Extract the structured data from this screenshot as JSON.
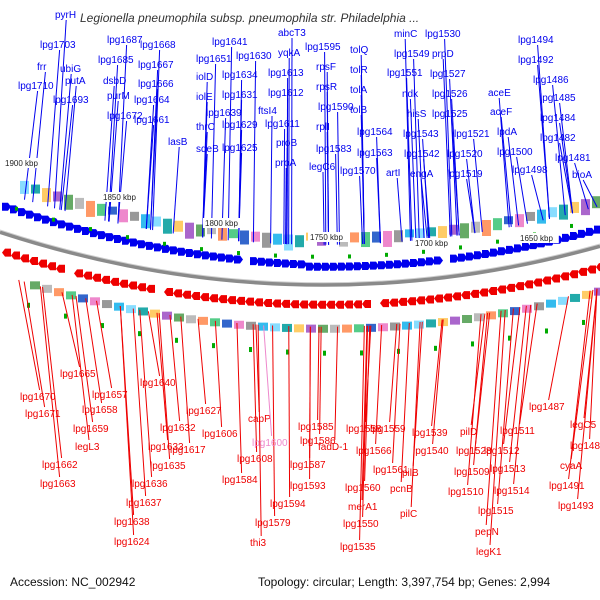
{
  "map": {
    "title": "Legionella pneumophila subsp. pneumophila str. Philadelphia ...",
    "accession_text": "Accession: NC_002942",
    "summary_text": "Topology: circular; Length: 3,397,754 bp; Genes: 2,994",
    "kbp_labels": [
      "1900 kbp",
      "1850 kbp",
      "1800 kbp",
      "1750 kbp",
      "1700 kbp",
      "1650 kbp"
    ],
    "colors": {
      "forward_strand": "#0000ee",
      "reverse_strand": "#ee0000",
      "pseudogene": "#ee88cc",
      "backbone": "#888888",
      "tick_marker": "#00aa00"
    }
  },
  "forward_genes": [
    "pyrH",
    "lpg1703",
    "frr",
    "ubiG",
    "lpg1710",
    "putA",
    "lpg1693",
    "lpg1687",
    "lpg1685",
    "dsbD",
    "purM",
    "lpg1672",
    "lpg1668",
    "lpg1667",
    "lpg1666",
    "lpg1664",
    "lpg1661",
    "lasB",
    "lpg1641",
    "lpg1651",
    "iolD",
    "iolE",
    "thrC",
    "sdeB",
    "lpg1630",
    "lpg1634",
    "lpg1631",
    "lpg1639",
    "lpg1629",
    "lpg1625",
    "abcT3",
    "yqkA",
    "lpg1613",
    "lpg1612",
    "ftsI4",
    "lpg1611",
    "proB",
    "proA",
    "lpg1595",
    "rpsF",
    "rpsR",
    "lpg1590",
    "rplI",
    "lpg1583",
    "legC6",
    "tolQ",
    "tolR",
    "tolA",
    "tolB",
    "lpg1564",
    "lpg1563",
    "lpg1570",
    "minC",
    "lpg1551",
    "lpg1549",
    "ndk",
    "hisS",
    "lpg1543",
    "lpg1542",
    "artI",
    "lpg1530",
    "prpD",
    "lpg1527",
    "lpg1526",
    "lpg1525",
    "engA",
    "lpg1521",
    "lpg1520",
    "lpg1519",
    "lpg1494",
    "lpg1492",
    "lpg1486",
    "aceE",
    "lpg1485",
    "aceF",
    "lpg1484",
    "lpdA",
    "lpg1482",
    "lpg1500",
    "lpg1481",
    "lpg1498",
    "bioA"
  ],
  "reverse_genes": [
    "lpg1665",
    "lpg1657",
    "lpg1670",
    "lpg1671",
    "lpg1658",
    "lpg1659",
    "legL3",
    "lpg1662",
    "lpg1663",
    "lpg1640",
    "lpg1632",
    "lpg1633",
    "lpg1635",
    "lpg1636",
    "lpg1637",
    "lpg1638",
    "lpg1624",
    "lpg1627",
    "lpg1617",
    "lpg1606",
    "capP",
    "lpg1608",
    "lpg1584",
    "lpg1585",
    "lpg1586",
    "lpg1587",
    "lpg1593",
    "lpg1594",
    "lpg1579",
    "thi3",
    "fadD-1",
    "lpg1558",
    "lpg1559",
    "lpg1566",
    "lpg1561",
    "lpg1560",
    "merA1",
    "lpg1550",
    "lpg1535",
    "pcnB",
    "lpg1539",
    "lpg1540",
    "pilB",
    "pilC",
    "pilD",
    "lpg1528",
    "lpg1509",
    "lpg1510",
    "lpg1511",
    "lpg1512",
    "lpg1513",
    "lpg1514",
    "lpg1515",
    "pepN",
    "legK1",
    "lpg1487",
    "legC5",
    "lpg1489",
    "cyaA",
    "lpg1491",
    "lpg1493"
  ],
  "pseudo_genes": [
    "lpg1600"
  ]
}
